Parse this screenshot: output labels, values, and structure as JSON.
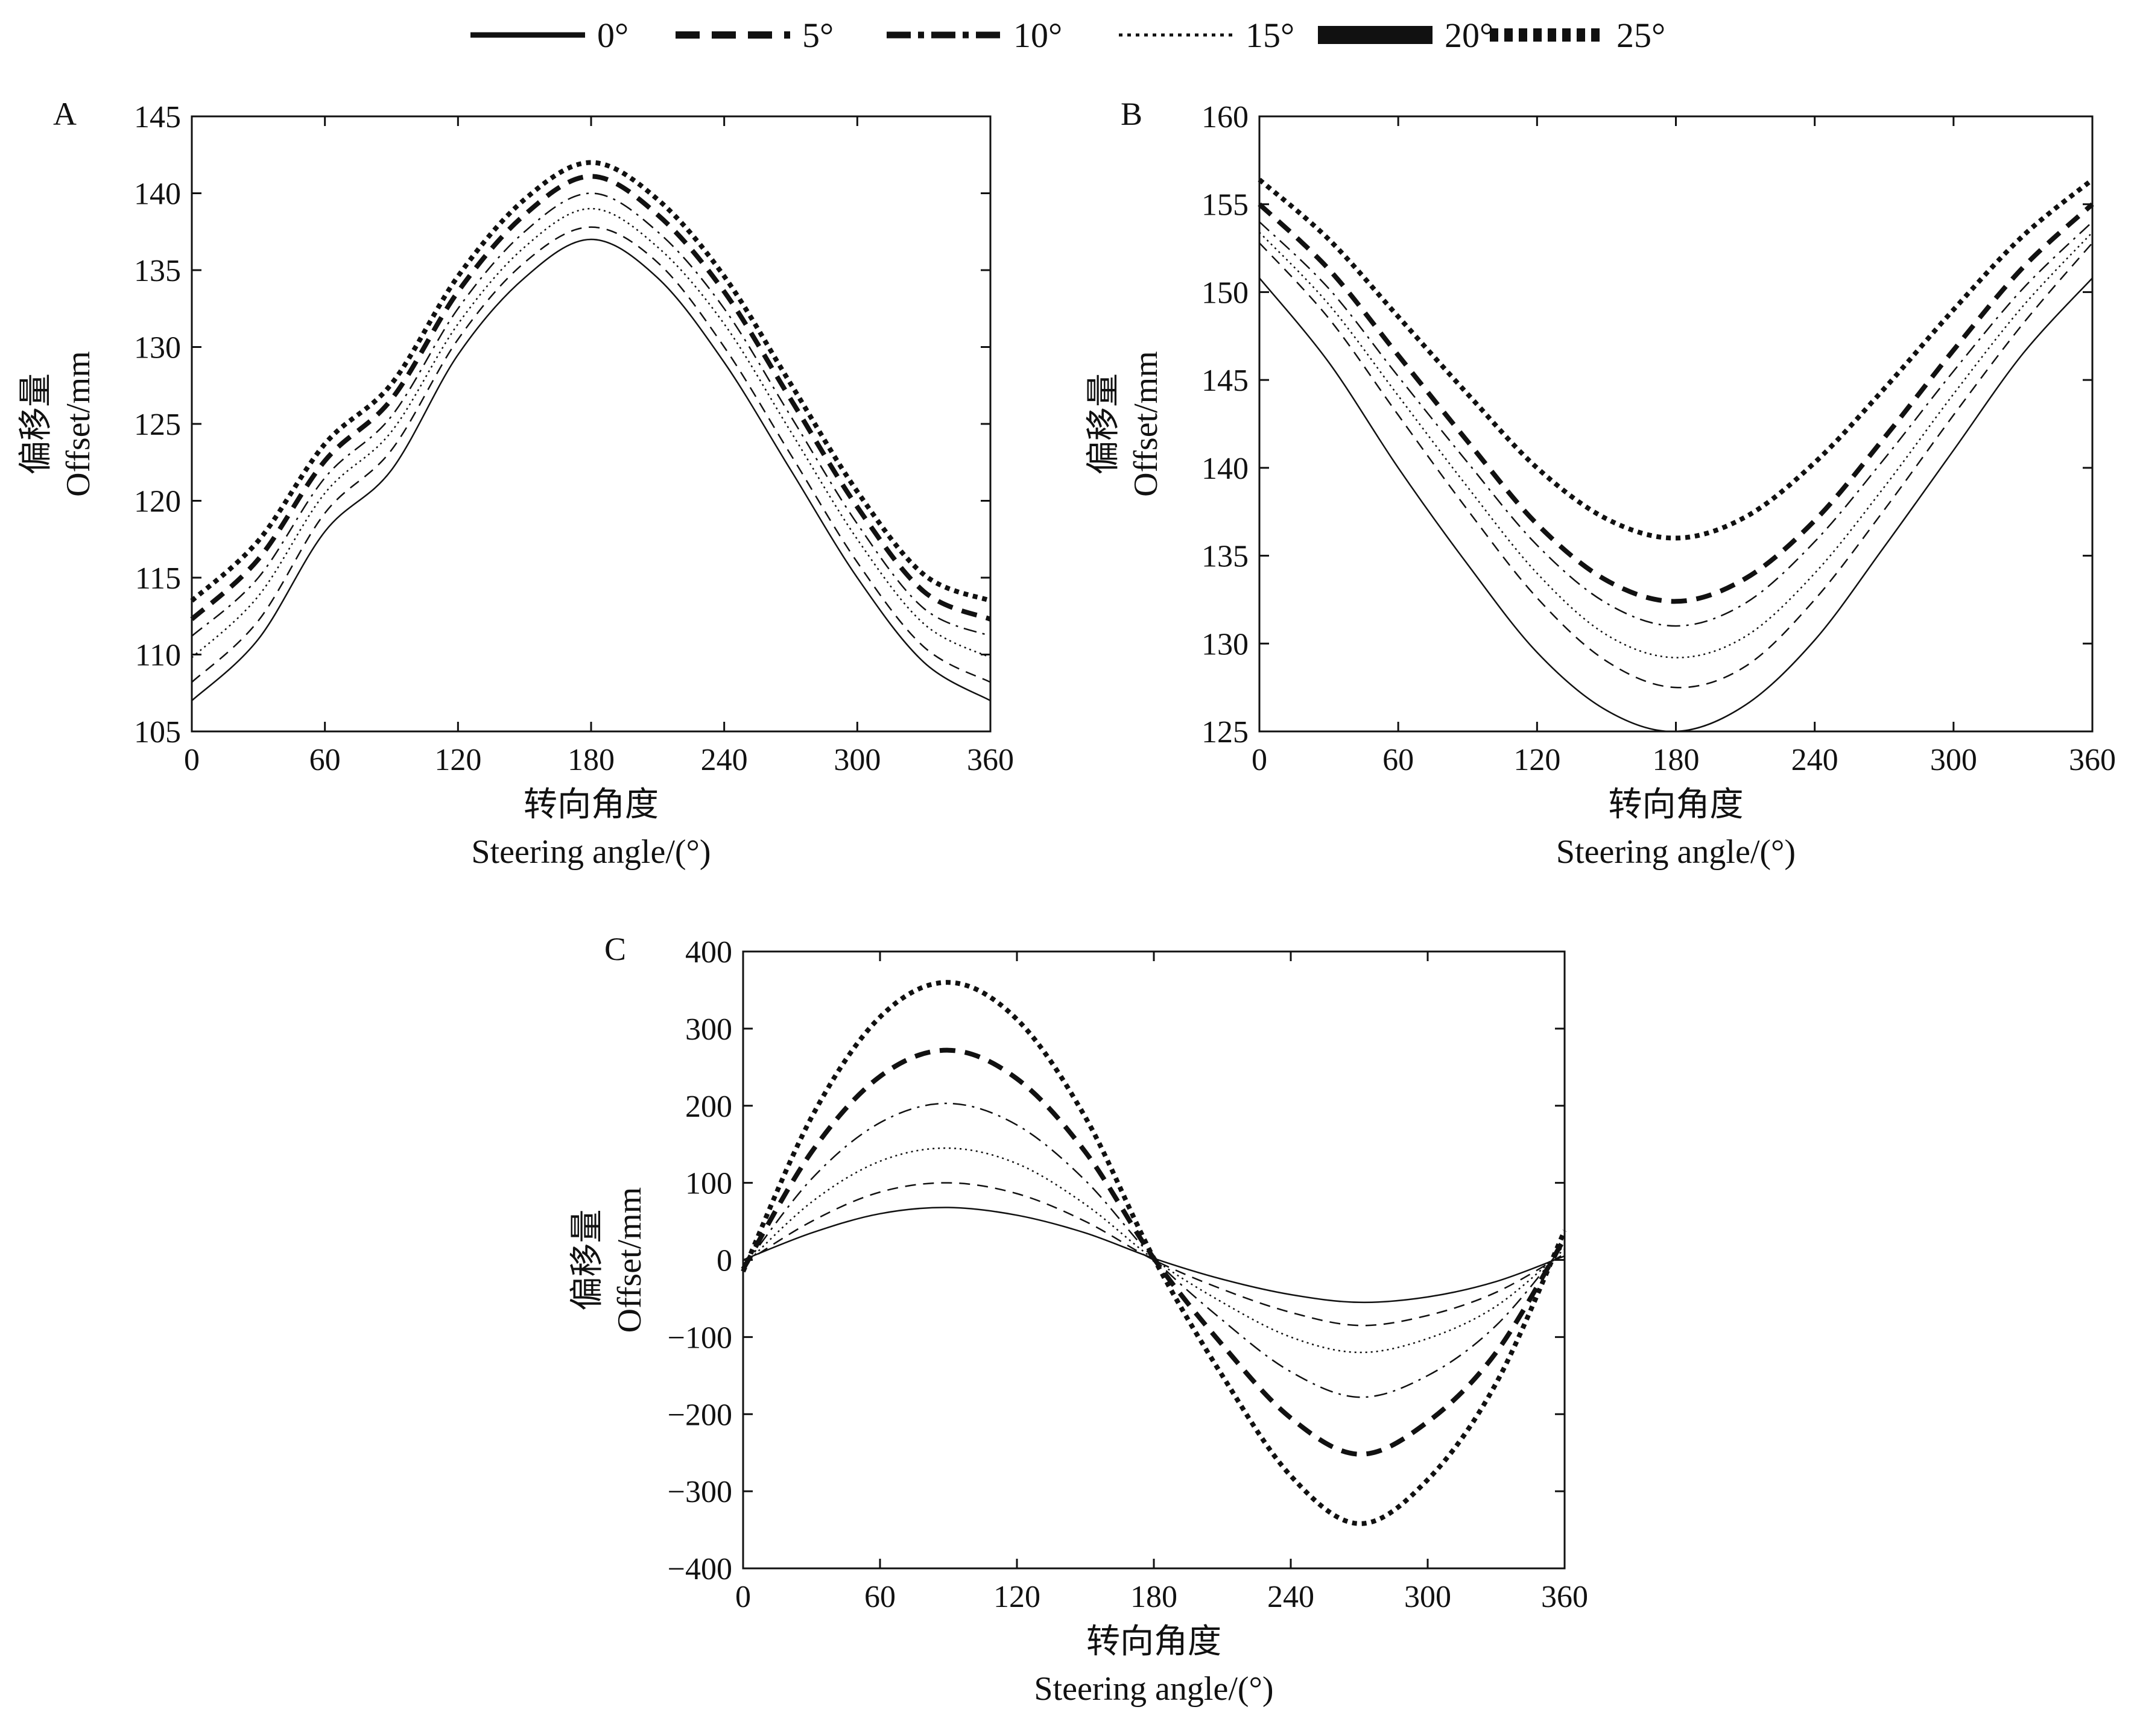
{
  "legend": {
    "entries": [
      {
        "label": "0°",
        "style": "solid"
      },
      {
        "label": "5°",
        "style": "dashed"
      },
      {
        "label": "10°",
        "style": "dashdot"
      },
      {
        "label": "15°",
        "style": "dotted"
      },
      {
        "label": "20°",
        "style": "bold-dashed"
      },
      {
        "label": "25°",
        "style": "bold-dotted"
      }
    ]
  },
  "chart_data": [
    {
      "panel_label": "A",
      "type": "line",
      "xlabel_cn": "转向角度",
      "xlabel_en": "Steering angle/(°)",
      "ylabel_cn": "偏移量",
      "ylabel_en": "Offset/mm",
      "xlim": [
        0,
        360
      ],
      "ylim": [
        105,
        145
      ],
      "xticks": [
        0,
        60,
        120,
        180,
        240,
        300,
        360
      ],
      "yticks": [
        105,
        110,
        115,
        120,
        125,
        130,
        135,
        140,
        145
      ],
      "x": [
        0,
        30,
        60,
        90,
        120,
        150,
        180,
        210,
        240,
        270,
        300,
        330,
        360
      ],
      "series": [
        {
          "name": "0°",
          "style": "solid",
          "values": [
            107.0,
            111.0,
            118.0,
            122.0,
            129.5,
            134.5,
            137.0,
            134.5,
            129.0,
            122.0,
            115.0,
            109.5,
            107.0
          ]
        },
        {
          "name": "5°",
          "style": "dashed",
          "values": [
            108.2,
            112.2,
            119.2,
            123.3,
            130.5,
            135.5,
            137.8,
            135.5,
            130.0,
            123.0,
            116.0,
            110.5,
            108.2
          ]
        },
        {
          "name": "10°",
          "style": "dashdot",
          "values": [
            111.2,
            115.0,
            121.5,
            125.5,
            132.5,
            137.5,
            140.0,
            137.5,
            132.5,
            125.5,
            118.5,
            113.0,
            111.2
          ]
        },
        {
          "name": "15°",
          "style": "dotted",
          "values": [
            109.8,
            113.8,
            120.5,
            124.5,
            131.5,
            136.5,
            139.0,
            136.5,
            131.5,
            124.5,
            117.5,
            112.0,
            109.8
          ]
        },
        {
          "name": "20°",
          "style": "bold-dashed",
          "values": [
            112.3,
            116.2,
            122.6,
            126.6,
            133.6,
            138.6,
            141.1,
            138.6,
            133.6,
            126.6,
            119.6,
            114.1,
            112.3
          ]
        },
        {
          "name": "25°",
          "style": "bold-dotted",
          "values": [
            113.5,
            117.4,
            123.7,
            127.6,
            134.6,
            139.6,
            142.0,
            139.6,
            134.6,
            127.6,
            120.6,
            115.2,
            113.5
          ]
        }
      ]
    },
    {
      "panel_label": "B",
      "type": "line",
      "xlabel_cn": "转向角度",
      "xlabel_en": "Steering angle/(°)",
      "ylabel_cn": "偏移量",
      "ylabel_en": "Offset/mm",
      "xlim": [
        0,
        360
      ],
      "ylim": [
        125,
        160
      ],
      "xticks": [
        0,
        60,
        120,
        180,
        240,
        300,
        360
      ],
      "yticks": [
        125,
        130,
        135,
        140,
        145,
        150,
        155,
        160
      ],
      "x": [
        0,
        30,
        60,
        90,
        120,
        150,
        180,
        210,
        240,
        270,
        300,
        330,
        360
      ],
      "series": [
        {
          "name": "0°",
          "style": "solid",
          "values": [
            150.8,
            146.0,
            140.0,
            134.5,
            129.5,
            126.2,
            125.0,
            126.5,
            130.2,
            135.5,
            141.0,
            146.5,
            150.8
          ]
        },
        {
          "name": "5°",
          "style": "dashed",
          "values": [
            152.8,
            148.5,
            143.0,
            137.6,
            132.6,
            129.0,
            127.5,
            128.7,
            132.5,
            137.6,
            143.0,
            148.2,
            152.8
          ]
        },
        {
          "name": "10°",
          "style": "dashdot",
          "values": [
            154.0,
            150.2,
            145.2,
            140.3,
            135.6,
            132.3,
            131.0,
            132.3,
            135.8,
            140.5,
            145.5,
            150.2,
            154.0
          ]
        },
        {
          "name": "15°",
          "style": "dotted",
          "values": [
            153.4,
            149.3,
            144.1,
            138.9,
            134.0,
            130.5,
            129.2,
            130.4,
            134.0,
            138.9,
            144.2,
            149.2,
            153.4
          ]
        },
        {
          "name": "20°",
          "style": "bold-dashed",
          "values": [
            155.0,
            151.3,
            146.4,
            141.5,
            136.8,
            133.6,
            132.4,
            133.7,
            137.0,
            141.7,
            146.7,
            151.4,
            155.0
          ]
        },
        {
          "name": "25°",
          "style": "bold-dotted",
          "values": [
            156.4,
            153.0,
            148.6,
            144.2,
            140.0,
            137.1,
            136.0,
            137.2,
            140.3,
            144.5,
            149.0,
            153.2,
            156.4
          ]
        }
      ]
    },
    {
      "panel_label": "C",
      "type": "line",
      "xlabel_cn": "转向角度",
      "xlabel_en": "Steering angle/(°)",
      "ylabel_cn": "偏移量",
      "ylabel_en": "Offset/mm",
      "xlim": [
        0,
        360
      ],
      "ylim": [
        -400,
        400
      ],
      "xticks": [
        0,
        60,
        120,
        180,
        240,
        300,
        360
      ],
      "yticks": [
        -400,
        -300,
        -200,
        -100,
        0,
        100,
        200,
        300,
        400
      ],
      "x": [
        0,
        30,
        60,
        90,
        120,
        150,
        180,
        210,
        240,
        270,
        300,
        330,
        360
      ],
      "series": [
        {
          "name": "0°",
          "style": "solid",
          "values": [
            0,
            35,
            60,
            68,
            58,
            35,
            2,
            -25,
            -45,
            -55,
            -48,
            -28,
            5
          ]
        },
        {
          "name": "5°",
          "style": "dashed",
          "values": [
            -5,
            50,
            88,
            100,
            86,
            50,
            0,
            -38,
            -68,
            -85,
            -72,
            -42,
            8
          ]
        },
        {
          "name": "10°",
          "style": "dashdot",
          "values": [
            -10,
            105,
            178,
            203,
            175,
            103,
            2,
            -78,
            -145,
            -178,
            -150,
            -85,
            20
          ]
        },
        {
          "name": "15°",
          "style": "dotted",
          "values": [
            -8,
            75,
            128,
            145,
            125,
            72,
            1,
            -55,
            -100,
            -120,
            -102,
            -60,
            14
          ]
        },
        {
          "name": "20°",
          "style": "bold-dashed",
          "values": [
            -12,
            140,
            238,
            272,
            235,
            140,
            2,
            -110,
            -205,
            -252,
            -210,
            -120,
            28
          ]
        },
        {
          "name": "25°",
          "style": "bold-dotted",
          "values": [
            -15,
            185,
            315,
            360,
            312,
            185,
            2,
            -150,
            -280,
            -342,
            -285,
            -160,
            38
          ]
        }
      ]
    }
  ]
}
